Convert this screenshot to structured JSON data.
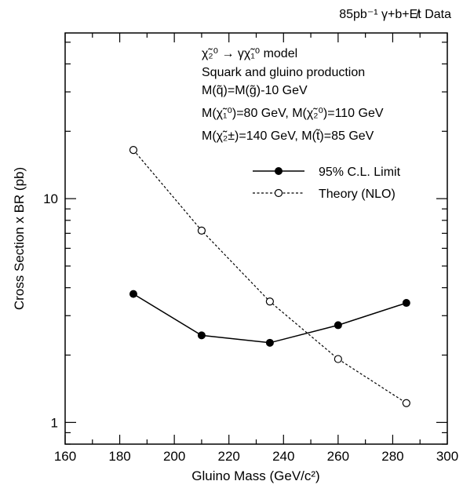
{
  "chart_data": {
    "type": "line",
    "title": "85pb⁻¹ γ+b+E̸t Data",
    "xlabel": "Gluino Mass (GeV/c²)",
    "ylabel": "Cross Section x BR (pb)",
    "xlim": [
      160,
      300
    ],
    "ylim": [
      0.8,
      55
    ],
    "yscale": "log",
    "x_ticks": [
      160,
      180,
      200,
      220,
      240,
      260,
      280,
      300
    ],
    "y_tick_labels": [
      {
        "value": 1,
        "label": "1"
      },
      {
        "value": 10,
        "label": "10"
      }
    ],
    "grid": false,
    "legend_position": "top-right",
    "series": [
      {
        "name": "95% C.L. Limit",
        "style": "solid-filled-circle",
        "x": [
          185,
          210,
          235,
          260,
          285
        ],
        "y": [
          3.75,
          2.45,
          2.27,
          2.72,
          3.42
        ]
      },
      {
        "name": "Theory (NLO)",
        "style": "dashed-open-circle",
        "x": [
          185,
          210,
          235,
          260,
          285
        ],
        "y": [
          16.5,
          7.2,
          3.47,
          1.92,
          1.22
        ]
      }
    ],
    "annotations": [
      "χ̃₂⁰ → γχ̃₁⁰ model",
      "Squark and gluino production",
      "M(q̃)=M(g̃)-10 GeV",
      "M(χ̃₁⁰)=80 GeV, M(χ̃₂⁰)=110 GeV",
      "M(χ̃₂±)=140 GeV, M(t̃)=85 GeV"
    ]
  },
  "colors": {
    "axis": "#000000",
    "line": "#000000",
    "background": "#ffffff"
  }
}
